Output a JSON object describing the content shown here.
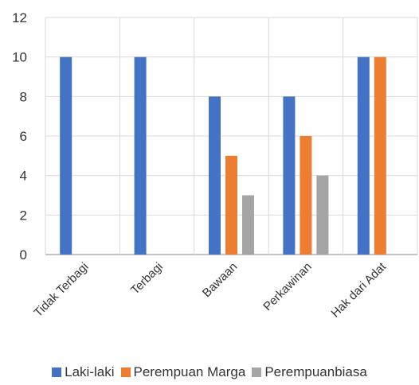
{
  "chart_data": {
    "type": "bar",
    "categories": [
      "Tidak Terbagi",
      "Terbagi",
      "Bawaan",
      "Perkawinan",
      "Hak dari Adat"
    ],
    "series": [
      {
        "name": "Laki-laki",
        "color": "#4472C4",
        "values": [
          10,
          10,
          8,
          8,
          10
        ]
      },
      {
        "name": "Perempuan Marga",
        "color": "#ED7D31",
        "values": [
          0,
          0,
          5,
          6,
          10
        ]
      },
      {
        "name": "Perempuanbiasa",
        "color": "#A5A5A5",
        "values": [
          0,
          0,
          3,
          4,
          0
        ]
      }
    ],
    "ylim": [
      0,
      12
    ],
    "yticks": [
      "0",
      "2",
      "4",
      "6",
      "8",
      "10",
      "12"
    ],
    "grid": true,
    "legend": "bottom"
  }
}
